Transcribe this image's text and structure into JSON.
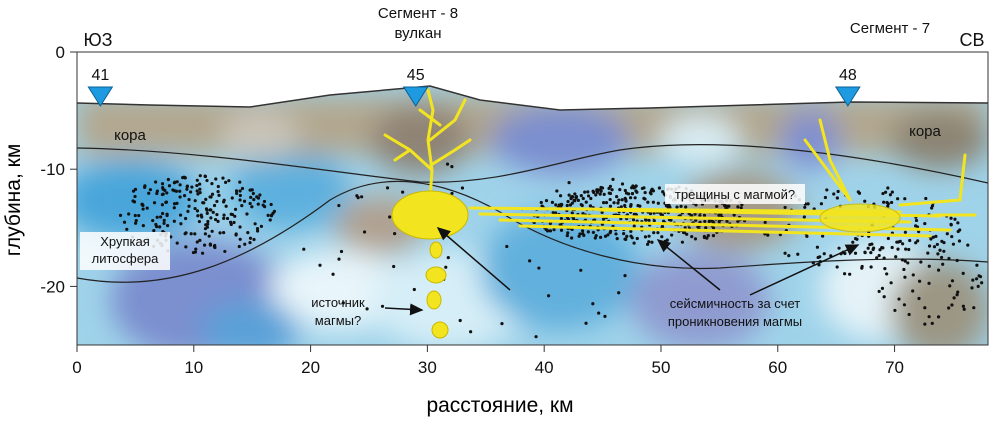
{
  "chart_data": {
    "type": "section",
    "xlabel": "расстояние, км",
    "ylabel": "глубина, км",
    "xlim": [
      0,
      78
    ],
    "ylim": [
      -25,
      0
    ],
    "xticks": [
      0,
      10,
      20,
      30,
      40,
      50,
      60,
      70
    ],
    "yticks": [
      0,
      -10,
      -20
    ],
    "stations": [
      {
        "label": "41",
        "x": 2
      },
      {
        "label": "45",
        "x": 29
      },
      {
        "label": "48",
        "x": 66
      }
    ],
    "station_color": "#1e9be0",
    "annotations": [
      "ЮЗ",
      "СВ",
      "Сегмент - 8",
      "вулкан",
      "Сегмент - 7",
      "кора",
      "кора",
      "Хрупкая",
      "литосфера",
      "трещины с магмой?",
      "источник",
      "магмы?",
      "сейсмичность за счет",
      "проникновения магмы"
    ]
  }
}
